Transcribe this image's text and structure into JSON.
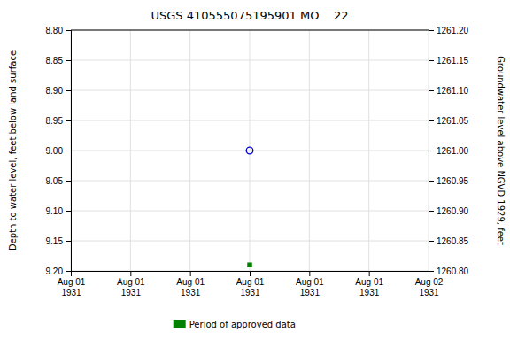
{
  "chart_data": {
    "type": "scatter",
    "title": "USGS 410555075195901 MO    22",
    "ylabel": "Depth to water level, feet below land surface",
    "y2label": "Groundwater level above NGVD 1929, feet",
    "categories": [
      "Aug 01\n1931",
      "Aug 01\n1931",
      "Aug 01\n1931",
      "Aug 01\n1931",
      "Aug 01\n1931",
      "Aug 01\n1931",
      "Aug 02\n1931"
    ],
    "series": [
      {
        "color": "#0000cd",
        "marker": "open-circle",
        "values": [
          null,
          null,
          null,
          9.0,
          null,
          null,
          null
        ]
      },
      {
        "name": "Period of approved data",
        "color": "#008000",
        "marker": "square",
        "values": [
          null,
          null,
          null,
          9.19,
          null,
          null,
          null
        ]
      }
    ],
    "ylim": [
      8.8,
      9.2
    ],
    "yticks": [
      {
        "value": 8.8,
        "label": "8.80"
      },
      8.85,
      {
        "value": 8.9,
        "label": "8.90"
      },
      8.95,
      {
        "value": 9.0,
        "label": "9.00"
      },
      9.05,
      {
        "value": 9.1,
        "label": "9.10"
      },
      9.15,
      {
        "value": 9.2,
        "label": "9.20"
      }
    ],
    "y2lim": [
      1260.8,
      1261.2
    ],
    "y2ticks": [
      {
        "value": 1260.8,
        "label": "1260.80"
      },
      1260.85,
      {
        "value": 1260.9,
        "label": "1260.90"
      },
      1260.95,
      {
        "value": 1261.0,
        "label": "1261.00"
      },
      1261.05,
      {
        "value": 1261.1,
        "label": "1261.10"
      },
      1261.15,
      {
        "value": 1261.2,
        "label": "1261.20"
      }
    ],
    "grid": true,
    "legend": "bottom"
  }
}
